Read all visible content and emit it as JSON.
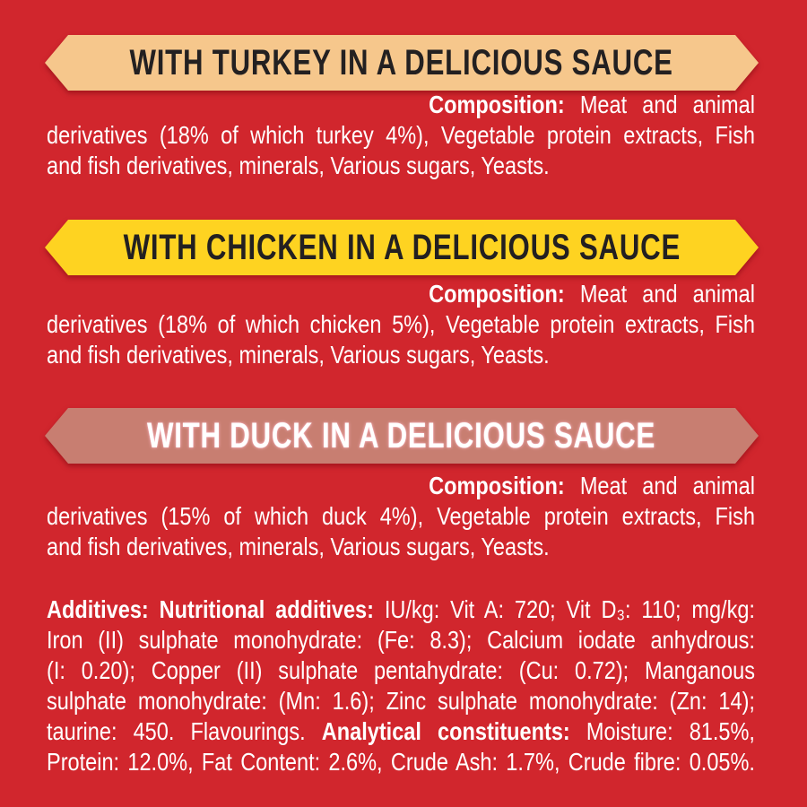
{
  "page": {
    "background_color": "#d1262d",
    "body_text_color": "#ffffff"
  },
  "sections": [
    {
      "id": "turkey",
      "banner": {
        "label": "WITH TURKEY IN A DELICIOUS SAUCE",
        "fill_color": "#f6c78c",
        "text_color": "#232021"
      },
      "composition": {
        "label": "Composition:",
        "line1_rest": " Meat and animal",
        "line2": "derivatives (18% of which turkey 4%), Vegetable protein extracts, Fish",
        "line3": "and fish derivatives, minerals, Various sugars, Yeasts."
      }
    },
    {
      "id": "chicken",
      "banner": {
        "label": "WITH CHICKEN IN A DELICIOUS SAUCE",
        "fill_color": "#fed321",
        "text_color": "#232021"
      },
      "composition": {
        "label": "Composition:",
        "line1_rest": " Meat and animal",
        "line2": "derivatives (18% of which chicken 5%), Vegetable protein extracts, Fish",
        "line3": "and fish derivatives, minerals, Various sugars, Yeasts."
      }
    },
    {
      "id": "duck",
      "banner": {
        "label": "WITH DUCK IN A DELICIOUS SAUCE",
        "fill_color": "#c87e71",
        "text_color": "#ffffff"
      },
      "composition": {
        "label": "Composition:",
        "line1_rest": " Meat and animal",
        "line2": "derivatives (15% of which duck 4%), Vegetable protein extracts, Fish",
        "line3": "and fish derivatives, minerals, Various sugars, Yeasts."
      }
    }
  ],
  "additives": {
    "line1_bold": "Additives: Nutritional additives:",
    "line1_rest": " IU/kg: Vit A: 720; Vit D₃: 110; mg/kg:",
    "line2": "Iron (II) sulphate monohydrate: (Fe: 8.3); Calcium iodate anhydrous:",
    "line3": "(I: 0.20); Copper (II) sulphate pentahydrate: (Cu: 0.72); Manganous",
    "line4": "sulphate monohydrate: (Mn: 1.6); Zinc sulphate monohydrate: (Zn: 14);",
    "line5_pre": "taurine: 450. Flavourings. ",
    "line5_bold": "Analytical constituents:",
    "line5_rest": " Moisture: 81.5%,",
    "line6": "Protein: 12.0%, Fat Content: 2.6%, Crude Ash: 1.7%, Crude fibre: 0.05%."
  }
}
